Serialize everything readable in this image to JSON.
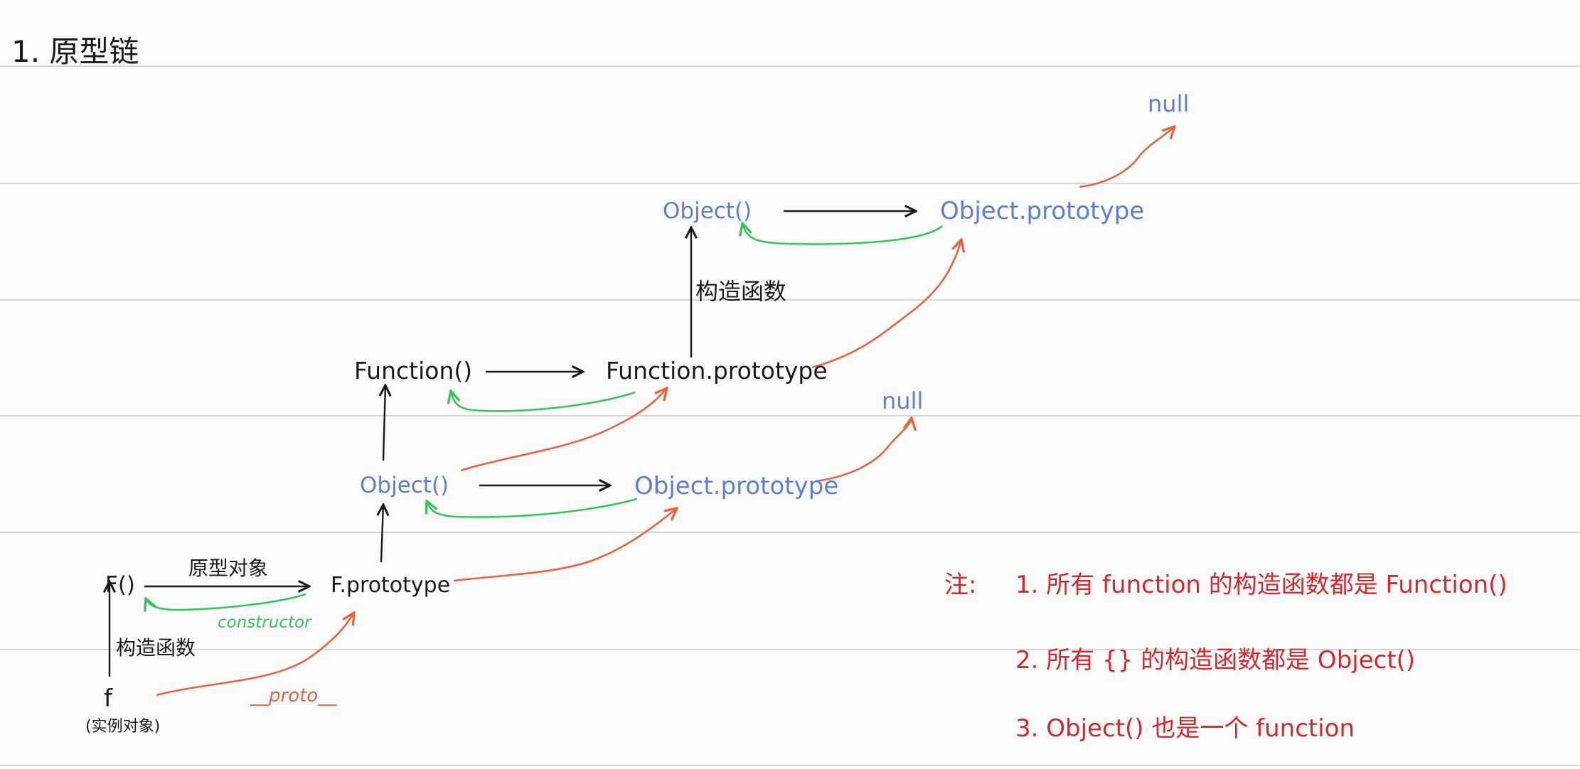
{
  "title": "1. 原型链",
  "nodes": {
    "F": "F()",
    "F_prototype": "F.prototype",
    "f": "f",
    "f_note": "(实例对象)",
    "Object_mid": "Object()",
    "Object_prototype_mid": "Object.prototype",
    "null_mid": "null",
    "Function": "Function()",
    "Function_prototype": "Function.prototype",
    "Object_top": "Object()",
    "Object_prototype_top": "Object.prototype",
    "null_top": "null"
  },
  "edge_labels": {
    "prototype_object": "原型对象",
    "constructor": "constructor",
    "constructor_fn_low": "构造函数",
    "constructor_fn_top": "构造函数",
    "proto": "__proto__"
  },
  "notes": {
    "prefix": "注:",
    "items": [
      "1. 所有 function 的构造函数都是 Function()",
      "2. 所有 {} 的构造函数都是 Object()",
      "3. Object() 也是一个 function"
    ]
  },
  "colors": {
    "black": "#1a1a1a",
    "blue": "#5b7fd6",
    "green": "#37c45a",
    "orange": "#e8643a",
    "red": "#d8262a",
    "rule": "#d6d6d6"
  }
}
